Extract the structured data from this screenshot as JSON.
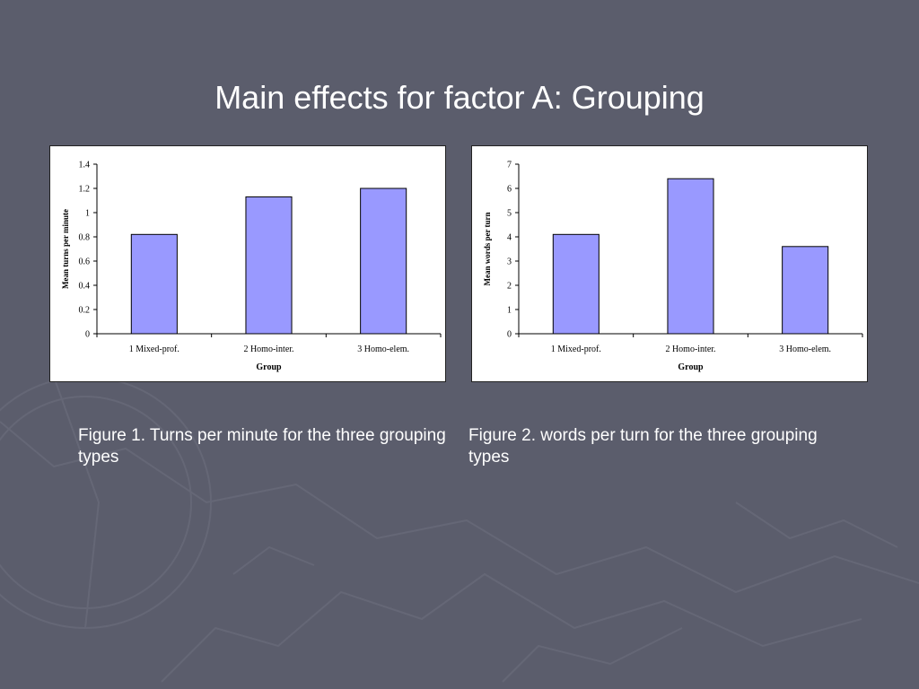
{
  "slide": {
    "title": "Main effects for factor A: Grouping",
    "captions": [
      "Figure 1. Turns per minute for the three grouping types",
      "Figure 2. words per turn for the three grouping types"
    ]
  },
  "colors": {
    "background": "#5b5d6c",
    "bar_fill": "#9999ff",
    "bar_stroke": "#000000"
  },
  "chart_data": [
    {
      "type": "bar",
      "categories": [
        "1 Mixed-prof.",
        "2 Homo-inter.",
        "3 Homo-elem."
      ],
      "values": [
        0.82,
        1.13,
        1.2
      ],
      "xlabel": "Group",
      "ylabel": "Mean turns per minute",
      "ylim": [
        0,
        1.4
      ],
      "yticks": [
        "0",
        "0.2",
        "0.4",
        "0.6",
        "0.8",
        "1",
        "1.2",
        "1.4"
      ],
      "grid": false,
      "legend": "none"
    },
    {
      "type": "bar",
      "categories": [
        "1 Mixed-prof.",
        "2 Homo-inter.",
        "3 Homo-elem."
      ],
      "values": [
        4.1,
        6.4,
        3.6
      ],
      "xlabel": "Group",
      "ylabel": "Mean words per turn",
      "ylim": [
        0,
        7
      ],
      "yticks": [
        "0",
        "1",
        "2",
        "3",
        "4",
        "5",
        "6",
        "7"
      ],
      "grid": false,
      "legend": "none"
    }
  ]
}
